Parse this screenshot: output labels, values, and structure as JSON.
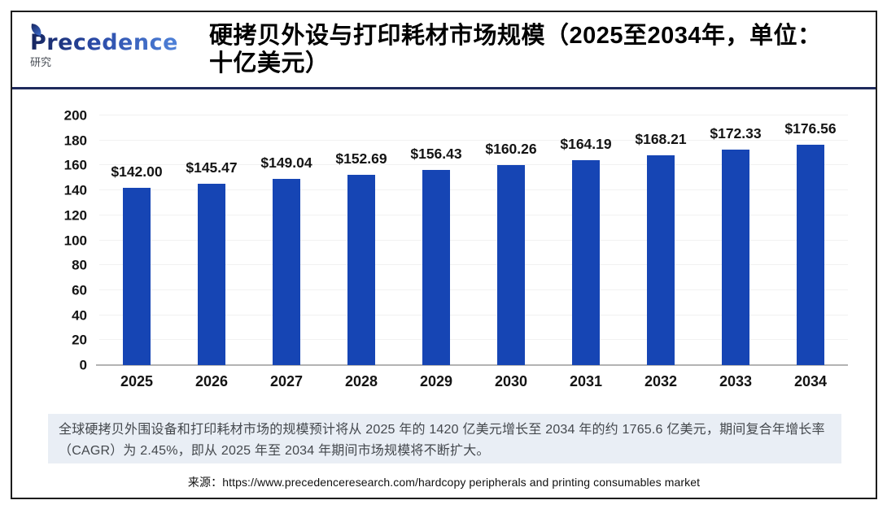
{
  "brand": {
    "name": "Precedence",
    "subtitle": "研究"
  },
  "header": {
    "title": "硬拷贝外设与打印耗材市场规模（2025至2034年，单位：十亿美元）"
  },
  "chart_data": {
    "type": "bar",
    "title": "硬拷贝外设与打印耗材市场规模（2025至2034年，单位：十亿美元）",
    "categories": [
      "2025",
      "2026",
      "2027",
      "2028",
      "2029",
      "2030",
      "2031",
      "2032",
      "2033",
      "2034"
    ],
    "values": [
      142.0,
      145.47,
      149.04,
      152.69,
      156.43,
      160.26,
      164.19,
      168.21,
      172.33,
      176.56
    ],
    "value_labels": [
      "$142.00",
      "$145.47",
      "$149.04",
      "$152.69",
      "$156.43",
      "$160.26",
      "$164.19",
      "$168.21",
      "$172.33",
      "$176.56"
    ],
    "xlabel": "",
    "ylabel": "",
    "ylim": [
      0,
      200
    ],
    "ytick_step": 20,
    "grid": true,
    "legend": "none",
    "bar_color": "#1645b4"
  },
  "caption": {
    "text": "全球硬拷贝外围设备和打印耗材市场的规模预计将从 2025 年的 1420 亿美元增长至 2034 年的约 1765.6 亿美元，期间复合年增长率（CAGR）为 2.45%，即从 2025 年至 2034 年期间市场规模将不断扩大。"
  },
  "source": {
    "text": "来源：https://www.precedenceresearch.com/hardcopy peripherals and printing consumables market"
  },
  "colors": {
    "bar": "#1645b4",
    "divider": "#1e2a5c",
    "caption_bg": "#e9eef5",
    "gridline": "#f1f1f1",
    "baseline": "#b3b3b3"
  }
}
